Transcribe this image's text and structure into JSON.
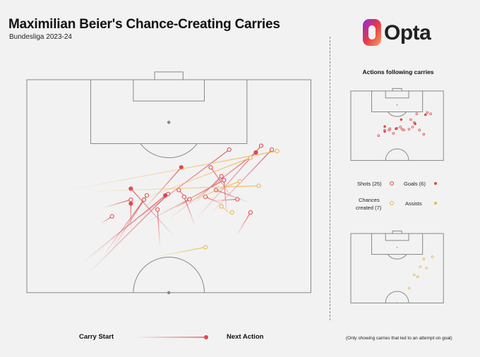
{
  "header": {
    "title": "Maximilian Beier's Chance-Creating Carries",
    "subtitle": "Bundesliga 2023-24"
  },
  "logo": {
    "text": "Opta",
    "colors": [
      "#7b2cbf",
      "#e63946",
      "#f4a261"
    ]
  },
  "right_panel": {
    "heading": "Actions following carries",
    "legend": {
      "shots_label": "Shots (25)",
      "goals_label": "Goals (6)",
      "chances_line1": "Chances",
      "chances_line2": "created (7)",
      "assists_label": "Assists"
    }
  },
  "bottom_legend": {
    "carry_start_label": "Carry Start",
    "next_action_label": "Next Action"
  },
  "footnote": "(Only showing carries that led to an attempt on goal)",
  "colors": {
    "shot": "#e0484d",
    "chance": "#f0b347",
    "pitch_line": "#888888",
    "background": "#f2f2f2"
  },
  "chart_data": {
    "type": "scatter",
    "pitch_dimensions": {
      "length": 120,
      "width": 80
    },
    "categories": [
      "Shot",
      "Goal",
      "Chance created",
      "Assist"
    ],
    "carries": [
      {
        "start": [
          83.0,
          52.5
        ],
        "end": [
          100.3,
          69.0
        ],
        "type": "shot"
      },
      {
        "start": [
          81.1,
          48.0
        ],
        "end": [
          101.4,
          66.0
        ],
        "type": "shot"
      },
      {
        "start": [
          81.1,
          40.5
        ],
        "end": [
          99.5,
          64.5
        ],
        "type": "goal"
      },
      {
        "start": [
          75.0,
          23.3
        ],
        "end": [
          100.3,
          57.0
        ],
        "type": "shot"
      },
      {
        "start": [
          80.3,
          34.5
        ],
        "end": [
          91.7,
          55.5
        ],
        "type": "goal"
      },
      {
        "start": [
          83.4,
          33.0
        ],
        "end": [
          95.3,
          43.5
        ],
        "type": "goal"
      },
      {
        "start": [
          85.3,
          47.3
        ],
        "end": [
          92.8,
          54.8
        ],
        "type": "shot"
      },
      {
        "start": [
          86.8,
          57.8
        ],
        "end": [
          95.3,
          51.8
        ],
        "type": "shot"
      },
      {
        "start": [
          82.3,
          56.3
        ],
        "end": [
          91.7,
          55.5
        ],
        "type": "shot"
      },
      {
        "start": [
          84.8,
          55.5
        ],
        "end": [
          87.0,
          50.3
        ],
        "type": "shot"
      },
      {
        "start": [
          85.5,
          62.3
        ],
        "end": [
          88.9,
          53.3
        ],
        "type": "shot"
      },
      {
        "start": [
          85.1,
          46.5
        ],
        "end": [
          88.9,
          42.8
        ],
        "type": "shot"
      },
      {
        "start": [
          66.1,
          18.0
        ],
        "end": [
          87.8,
          39.8
        ],
        "type": "shot"
      },
      {
        "start": [
          69.1,
          16.5
        ],
        "end": [
          87.4,
          39.0
        ],
        "type": "goal"
      },
      {
        "start": [
          72.2,
          24.0
        ],
        "end": [
          87.4,
          33.8
        ],
        "type": "shot"
      },
      {
        "start": [
          73.3,
          37.5
        ],
        "end": [
          83.4,
          36.8
        ],
        "type": "shot"
      },
      {
        "start": [
          70.8,
          21.8
        ],
        "end": [
          86.2,
          33.0
        ],
        "type": "shot"
      },
      {
        "start": [
          78.0,
          29.3
        ],
        "end": [
          85.1,
          29.3
        ],
        "type": "goal"
      },
      {
        "start": [
          76.1,
          41.3
        ],
        "end": [
          89.3,
          29.3
        ],
        "type": "goal"
      },
      {
        "start": [
          84.0,
          42.0
        ],
        "end": [
          86.3,
          45.8
        ],
        "type": "shot"
      },
      {
        "start": [
          85.9,
          52.8
        ],
        "end": [
          86.3,
          59.3
        ],
        "type": "shot"
      },
      {
        "start": [
          76.5,
          59.3
        ],
        "end": [
          82.6,
          63.0
        ],
        "type": "shot"
      },
      {
        "start": [
          79.0,
          47.3
        ],
        "end": [
          87.0,
          44.3
        ],
        "type": "shot"
      },
      {
        "start": [
          79.5,
          21.0
        ],
        "end": [
          81.5,
          24.0
        ],
        "type": "shot"
      },
      {
        "start": [
          84.0,
          21.8
        ],
        "end": [
          86.2,
          29.3
        ],
        "type": "shot"
      },
      {
        "start": [
          89.1,
          12.8
        ],
        "end": [
          99.9,
          70.5
        ],
        "type": "chance"
      },
      {
        "start": [
          88.6,
          19.5
        ],
        "end": [
          90.1,
          65.3
        ],
        "type": "chance"
      },
      {
        "start": [
          85.1,
          29.3
        ],
        "end": [
          98.0,
          63.0
        ],
        "type": "chance"
      },
      {
        "start": [
          82.8,
          38.3
        ],
        "end": [
          91.4,
          60.0
        ],
        "type": "chance"
      },
      {
        "start": [
          82.2,
          57.0
        ],
        "end": [
          82.6,
          57.8
        ],
        "type": "chance"
      },
      {
        "start": [
          81.9,
          57.8
        ],
        "end": [
          84.3,
          54.8
        ],
        "type": "chance"
      },
      {
        "start": [
          70.2,
          36.8
        ],
        "end": [
          72.8,
          50.3
        ],
        "type": "chance"
      }
    ],
    "xlabel": "",
    "ylabel": ""
  }
}
